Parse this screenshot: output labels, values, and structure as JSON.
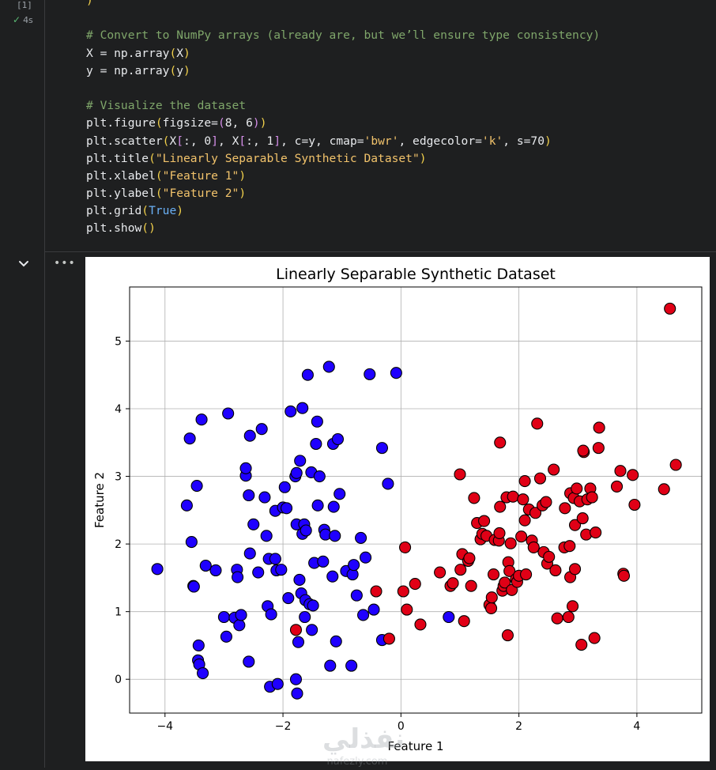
{
  "cell": {
    "execution_count": "[1]",
    "duration": "4s",
    "code_lines": [
      [
        {
          "t": ")",
          "c": "br"
        }
      ],
      [],
      [
        {
          "t": "# Convert to NumPy arrays (already are, but we’ll ensure type consistency)",
          "c": "cm"
        }
      ],
      [
        {
          "t": "X = np.array"
        },
        {
          "t": "(",
          "c": "br"
        },
        {
          "t": "X"
        },
        {
          "t": ")",
          "c": "br"
        }
      ],
      [
        {
          "t": "y = np.array"
        },
        {
          "t": "(",
          "c": "br"
        },
        {
          "t": "y"
        },
        {
          "t": ")",
          "c": "br"
        }
      ],
      [],
      [
        {
          "t": "# Visualize the dataset",
          "c": "cm"
        }
      ],
      [
        {
          "t": "plt.figure"
        },
        {
          "t": "(",
          "c": "br"
        },
        {
          "t": "figsize="
        },
        {
          "t": "(",
          "c": "br2"
        },
        {
          "t": "8, 6"
        },
        {
          "t": ")",
          "c": "br2"
        },
        {
          "t": ")",
          "c": "br"
        }
      ],
      [
        {
          "t": "plt.scatter"
        },
        {
          "t": "(",
          "c": "br"
        },
        {
          "t": "X"
        },
        {
          "t": "[",
          "c": "br2"
        },
        {
          "t": ":, 0"
        },
        {
          "t": "]",
          "c": "br2"
        },
        {
          "t": ", X"
        },
        {
          "t": "[",
          "c": "br2"
        },
        {
          "t": ":, 1"
        },
        {
          "t": "]",
          "c": "br2"
        },
        {
          "t": ", c=y, cmap="
        },
        {
          "t": "'bwr'",
          "c": "st"
        },
        {
          "t": ", edgecolor="
        },
        {
          "t": "'k'",
          "c": "st"
        },
        {
          "t": ", s=70"
        },
        {
          "t": ")",
          "c": "br"
        }
      ],
      [
        {
          "t": "plt.title"
        },
        {
          "t": "(",
          "c": "br"
        },
        {
          "t": "\"Linearly Separable Synthetic Dataset\"",
          "c": "st"
        },
        {
          "t": ")",
          "c": "br"
        }
      ],
      [
        {
          "t": "plt.xlabel"
        },
        {
          "t": "(",
          "c": "br"
        },
        {
          "t": "\"Feature 1\"",
          "c": "st"
        },
        {
          "t": ")",
          "c": "br"
        }
      ],
      [
        {
          "t": "plt.ylabel"
        },
        {
          "t": "(",
          "c": "br"
        },
        {
          "t": "\"Feature 2\"",
          "c": "st"
        },
        {
          "t": ")",
          "c": "br"
        }
      ],
      [
        {
          "t": "plt.grid"
        },
        {
          "t": "(",
          "c": "br"
        },
        {
          "t": "True",
          "c": "kw"
        },
        {
          "t": ")",
          "c": "br"
        }
      ],
      [
        {
          "t": "plt.show"
        },
        {
          "t": "(",
          "c": "br"
        },
        {
          "t": ")",
          "c": "br"
        }
      ]
    ]
  },
  "output": {
    "more_label": "•••"
  },
  "icons": {
    "run": "play-icon",
    "collapse": "chevron-down-icon",
    "status": "check-icon"
  },
  "colors": {
    "class0": "#1f00ff",
    "class1": "#e00016",
    "edge": "#000000"
  },
  "watermark": {
    "text_ar": "نفذلي",
    "text_en": "nafezly.com"
  },
  "chart_data": {
    "type": "scatter",
    "title": "Linearly Separable Synthetic Dataset",
    "xlabel": "Feature 1",
    "ylabel": "Feature 2",
    "xlim": [
      -4.6,
      5.1
    ],
    "ylim": [
      -0.5,
      5.8
    ],
    "xticks": [
      -4,
      -2,
      0,
      2,
      4
    ],
    "xtick_labels": [
      "−4",
      "−2",
      "0",
      "2",
      "4"
    ],
    "yticks": [
      0,
      1,
      2,
      3,
      4,
      5
    ],
    "ytick_labels": [
      "0",
      "1",
      "2",
      "3",
      "4",
      "5"
    ],
    "grid": true,
    "series": [
      {
        "color": "#1f00ff",
        "points": [
          [
            -4.13,
            1.63
          ],
          [
            -3.63,
            2.57
          ],
          [
            -3.58,
            3.56
          ],
          [
            -3.55,
            2.03
          ],
          [
            -3.52,
            1.38
          ],
          [
            -3.51,
            1.37
          ],
          [
            -3.46,
            2.86
          ],
          [
            -3.43,
            0.5
          ],
          [
            -3.44,
            0.28
          ],
          [
            -3.42,
            0.22
          ],
          [
            -3.38,
            3.84
          ],
          [
            -3.36,
            0.09
          ],
          [
            -3.31,
            1.68
          ],
          [
            -3.14,
            1.61
          ],
          [
            -3.0,
            0.92
          ],
          [
            -2.96,
            0.63
          ],
          [
            -2.93,
            3.93
          ],
          [
            -2.82,
            0.91
          ],
          [
            -2.78,
            1.62
          ],
          [
            -2.77,
            1.51
          ],
          [
            -2.74,
            0.8
          ],
          [
            -2.71,
            0.95
          ],
          [
            -2.63,
            3.01
          ],
          [
            -2.63,
            3.12
          ],
          [
            -2.58,
            0.26
          ],
          [
            -2.58,
            2.72
          ],
          [
            -2.56,
            3.6
          ],
          [
            -2.56,
            1.86
          ],
          [
            -2.5,
            2.29
          ],
          [
            -2.42,
            1.58
          ],
          [
            -2.36,
            3.7
          ],
          [
            -2.31,
            2.69
          ],
          [
            -2.28,
            2.12
          ],
          [
            -2.26,
            1.08
          ],
          [
            -2.24,
            1.78
          ],
          [
            -2.22,
            -0.11
          ],
          [
            -2.2,
            0.96
          ],
          [
            -2.13,
            1.78
          ],
          [
            -2.13,
            2.49
          ],
          [
            -2.11,
            1.61
          ],
          [
            -2.09,
            -0.07
          ],
          [
            -2.03,
            1.62
          ],
          [
            -2.0,
            2.54
          ],
          [
            -1.97,
            2.84
          ],
          [
            -1.94,
            2.53
          ],
          [
            -1.91,
            1.2
          ],
          [
            -1.87,
            3.96
          ],
          [
            -1.79,
            3.0
          ],
          [
            -1.78,
            0.0
          ],
          [
            -1.77,
            3.05
          ],
          [
            -1.77,
            2.29
          ],
          [
            -1.76,
            -0.21
          ],
          [
            -1.74,
            0.55
          ],
          [
            -1.72,
            1.47
          ],
          [
            -1.71,
            3.23
          ],
          [
            -1.69,
            1.27
          ],
          [
            -1.67,
            4.01
          ],
          [
            -1.67,
            2.15
          ],
          [
            -1.64,
            2.29
          ],
          [
            -1.62,
            1.17
          ],
          [
            -1.63,
            0.92
          ],
          [
            -1.61,
            2.2
          ],
          [
            -1.58,
            4.5
          ],
          [
            -1.55,
            1.11
          ],
          [
            -1.51,
            0.73
          ],
          [
            -1.52,
            3.06
          ],
          [
            -1.49,
            1.09
          ],
          [
            -1.47,
            1.72
          ],
          [
            -1.44,
            3.48
          ],
          [
            -1.42,
            3.81
          ],
          [
            -1.41,
            2.57
          ],
          [
            -1.38,
            3.0
          ],
          [
            -1.32,
            1.74
          ],
          [
            -1.3,
            2.21
          ],
          [
            -1.28,
            2.14
          ],
          [
            -1.22,
            4.62
          ],
          [
            -1.16,
            1.52
          ],
          [
            -1.15,
            3.48
          ],
          [
            -1.14,
            2.55
          ],
          [
            -1.12,
            2.12
          ],
          [
            -1.1,
            0.56
          ],
          [
            -1.07,
            3.55
          ],
          [
            -1.04,
            2.74
          ],
          [
            -0.93,
            1.6
          ],
          [
            -0.84,
            0.2
          ],
          [
            -0.82,
            1.55
          ],
          [
            -0.8,
            1.69
          ],
          [
            -0.75,
            1.24
          ],
          [
            -0.68,
            2.09
          ],
          [
            -0.64,
            0.95
          ],
          [
            -0.6,
            1.8
          ],
          [
            -0.53,
            4.51
          ],
          [
            -0.46,
            1.03
          ],
          [
            -0.32,
            3.42
          ],
          [
            -0.32,
            0.58
          ],
          [
            -0.22,
            2.89
          ],
          [
            -0.08,
            4.53
          ],
          [
            0.81,
            0.92
          ],
          [
            -1.2,
            0.2
          ]
        ]
      },
      {
        "color": "#e00016",
        "points": [
          [
            -1.78,
            0.73
          ],
          [
            -0.2,
            0.6
          ],
          [
            -0.42,
            1.3
          ],
          [
            0.04,
            1.3
          ],
          [
            0.07,
            1.95
          ],
          [
            0.1,
            1.03
          ],
          [
            0.24,
            1.41
          ],
          [
            0.33,
            0.81
          ],
          [
            0.66,
            1.58
          ],
          [
            0.84,
            1.38
          ],
          [
            0.88,
            1.42
          ],
          [
            1.0,
            3.03
          ],
          [
            1.01,
            1.62
          ],
          [
            1.04,
            1.85
          ],
          [
            1.07,
            0.86
          ],
          [
            1.14,
            1.75
          ],
          [
            1.16,
            1.79
          ],
          [
            1.19,
            1.38
          ],
          [
            1.24,
            2.68
          ],
          [
            1.29,
            2.31
          ],
          [
            1.35,
            2.07
          ],
          [
            1.38,
            2.15
          ],
          [
            1.41,
            2.34
          ],
          [
            1.45,
            2.12
          ],
          [
            1.5,
            1.1
          ],
          [
            1.53,
            1.05
          ],
          [
            1.54,
            1.21
          ],
          [
            1.57,
            1.55
          ],
          [
            1.59,
            2.06
          ],
          [
            1.66,
            2.05
          ],
          [
            1.67,
            2.16
          ],
          [
            1.68,
            3.5
          ],
          [
            1.68,
            2.55
          ],
          [
            1.72,
            1.31
          ],
          [
            1.74,
            1.38
          ],
          [
            1.76,
            1.43
          ],
          [
            1.79,
            2.69
          ],
          [
            1.81,
            0.65
          ],
          [
            1.82,
            1.73
          ],
          [
            1.84,
            1.6
          ],
          [
            1.86,
            2.01
          ],
          [
            1.88,
            1.32
          ],
          [
            1.9,
            2.7
          ],
          [
            1.95,
            1.48
          ],
          [
            1.97,
            1.44
          ],
          [
            2.0,
            1.53
          ],
          [
            2.04,
            2.11
          ],
          [
            2.07,
            2.66
          ],
          [
            2.1,
            2.35
          ],
          [
            2.1,
            2.93
          ],
          [
            2.12,
            1.55
          ],
          [
            2.17,
            2.51
          ],
          [
            2.22,
            2.05
          ],
          [
            2.25,
            1.95
          ],
          [
            2.28,
            2.46
          ],
          [
            2.31,
            3.78
          ],
          [
            2.36,
            2.97
          ],
          [
            2.4,
            2.57
          ],
          [
            2.42,
            1.88
          ],
          [
            2.46,
            2.62
          ],
          [
            2.48,
            1.71
          ],
          [
            2.51,
            1.81
          ],
          [
            2.59,
            3.1
          ],
          [
            2.62,
            1.61
          ],
          [
            2.65,
            0.9
          ],
          [
            2.77,
            1.95
          ],
          [
            2.78,
            2.53
          ],
          [
            2.84,
            0.92
          ],
          [
            2.86,
            1.97
          ],
          [
            2.87,
            2.75
          ],
          [
            2.87,
            1.51
          ],
          [
            2.91,
            1.08
          ],
          [
            2.93,
            2.68
          ],
          [
            2.95,
            1.63
          ],
          [
            2.95,
            2.28
          ],
          [
            2.98,
            2.82
          ],
          [
            3.03,
            2.63
          ],
          [
            3.06,
            0.51
          ],
          [
            3.08,
            2.38
          ],
          [
            3.1,
            3.36
          ],
          [
            3.14,
            2.14
          ],
          [
            3.16,
            2.66
          ],
          [
            3.21,
            2.82
          ],
          [
            3.24,
            2.69
          ],
          [
            3.28,
            0.61
          ],
          [
            3.3,
            2.17
          ],
          [
            3.35,
            3.42
          ],
          [
            3.36,
            3.72
          ],
          [
            3.66,
            2.85
          ],
          [
            3.72,
            3.08
          ],
          [
            3.77,
            1.56
          ],
          [
            3.78,
            1.53
          ],
          [
            3.93,
            3.02
          ],
          [
            3.96,
            2.58
          ],
          [
            4.46,
            2.81
          ],
          [
            4.56,
            5.48
          ],
          [
            4.66,
            3.17
          ],
          [
            3.09,
            3.38
          ]
        ]
      }
    ]
  }
}
